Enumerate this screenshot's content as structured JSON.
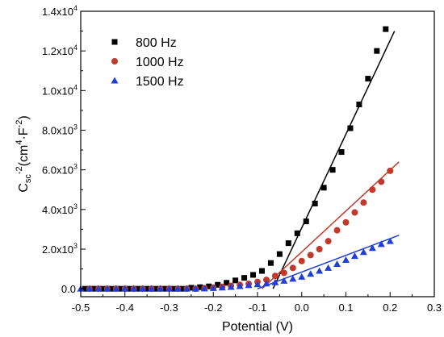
{
  "chart_data": {
    "type": "scatter",
    "title": "",
    "xlabel": "Potential (V)",
    "ylabel": {
      "base": "C",
      "sub": "sc",
      "sup": "-2",
      "open": "(cm",
      "unit_sup": "4",
      "dot": "·F",
      "unit_sup2": "-2",
      "close": ")"
    },
    "xlim": [
      -0.5,
      0.3
    ],
    "ylim": [
      -400,
      14000
    ],
    "x_ticks": [
      {
        "value": -0.5,
        "label": "-0.5"
      },
      {
        "value": -0.4,
        "label": "-0.4"
      },
      {
        "value": -0.3,
        "label": "-0.3"
      },
      {
        "value": -0.2,
        "label": "-0.2"
      },
      {
        "value": -0.1,
        "label": "-0.1"
      },
      {
        "value": 0.0,
        "label": "0.0"
      },
      {
        "value": 0.1,
        "label": "0.1"
      },
      {
        "value": 0.2,
        "label": "0.2"
      },
      {
        "value": 0.3,
        "label": "0.3"
      }
    ],
    "y_ticks": [
      {
        "value": 0,
        "mant": "0.0",
        "exp": ""
      },
      {
        "value": 2000,
        "mant": "2.0x10",
        "exp": "3"
      },
      {
        "value": 4000,
        "mant": "4.0x10",
        "exp": "3"
      },
      {
        "value": 6000,
        "mant": "6.0x10",
        "exp": "3"
      },
      {
        "value": 8000,
        "mant": "8.0x10",
        "exp": "3"
      },
      {
        "value": 10000,
        "mant": "1.0x10",
        "exp": "4"
      },
      {
        "value": 12000,
        "mant": "1.2x10",
        "exp": "4"
      },
      {
        "value": 14000,
        "mant": "1.4x10",
        "exp": "4"
      }
    ],
    "grid": false,
    "legend_position": "top-left",
    "series": [
      {
        "name": "800 Hz",
        "marker": "square",
        "color": "#000000",
        "fit_color": "#000000",
        "fit": [
          [
            -0.065,
            0
          ],
          [
            0.21,
            13000
          ]
        ],
        "x": [
          -0.49,
          -0.47,
          -0.45,
          -0.43,
          -0.41,
          -0.39,
          -0.37,
          -0.35,
          -0.33,
          -0.31,
          -0.29,
          -0.27,
          -0.25,
          -0.23,
          -0.21,
          -0.19,
          -0.17,
          -0.15,
          -0.13,
          -0.11,
          -0.09,
          -0.07,
          -0.05,
          -0.03,
          -0.01,
          0.01,
          0.03,
          0.05,
          0.07,
          0.09,
          0.11,
          0.13,
          0.15,
          0.17,
          0.19
        ],
        "y": [
          0,
          0,
          0,
          0,
          0,
          0,
          0,
          0,
          0,
          0,
          0,
          0,
          50,
          80,
          120,
          200,
          300,
          420,
          550,
          700,
          900,
          1300,
          1750,
          2300,
          2800,
          3400,
          4300,
          5100,
          6000,
          6900,
          8100,
          9300,
          10600,
          12000,
          13100
        ]
      },
      {
        "name": "1000 Hz",
        "marker": "circle",
        "color": "#c0392b",
        "fit_color": "#c0392b",
        "fit": [
          [
            -0.09,
            0
          ],
          [
            0.22,
            6400
          ]
        ],
        "x": [
          -0.48,
          -0.46,
          -0.44,
          -0.42,
          -0.4,
          -0.38,
          -0.36,
          -0.34,
          -0.32,
          -0.3,
          -0.28,
          -0.26,
          -0.24,
          -0.22,
          -0.2,
          -0.18,
          -0.16,
          -0.14,
          -0.12,
          -0.1,
          -0.08,
          -0.06,
          -0.04,
          -0.02,
          0.0,
          0.02,
          0.04,
          0.06,
          0.08,
          0.1,
          0.12,
          0.14,
          0.16,
          0.18,
          0.2
        ],
        "y": [
          0,
          0,
          0,
          0,
          0,
          0,
          0,
          0,
          0,
          0,
          0,
          0,
          0,
          30,
          60,
          100,
          150,
          200,
          250,
          350,
          450,
          650,
          800,
          1050,
          1400,
          1700,
          2000,
          2400,
          2950,
          3350,
          3850,
          4350,
          5000,
          5400,
          5950
        ]
      },
      {
        "name": "1500 Hz",
        "marker": "triangle",
        "color": "#1f3fd8",
        "fit_color": "#1f3fd8",
        "fit": [
          [
            -0.1,
            0
          ],
          [
            0.22,
            2700
          ]
        ],
        "x": [
          -0.5,
          -0.48,
          -0.46,
          -0.44,
          -0.42,
          -0.4,
          -0.38,
          -0.36,
          -0.34,
          -0.32,
          -0.3,
          -0.28,
          -0.26,
          -0.24,
          -0.22,
          -0.2,
          -0.18,
          -0.16,
          -0.14,
          -0.12,
          -0.1,
          -0.08,
          -0.06,
          -0.04,
          -0.02,
          0.0,
          0.02,
          0.04,
          0.06,
          0.08,
          0.1,
          0.12,
          0.14,
          0.16,
          0.18,
          0.2
        ],
        "y": [
          0,
          0,
          0,
          0,
          0,
          0,
          0,
          0,
          0,
          0,
          0,
          0,
          0,
          0,
          10,
          30,
          60,
          90,
          130,
          180,
          220,
          260,
          320,
          400,
          500,
          600,
          750,
          900,
          1050,
          1250,
          1450,
          1650,
          1850,
          2050,
          2250,
          2400
        ]
      }
    ]
  }
}
